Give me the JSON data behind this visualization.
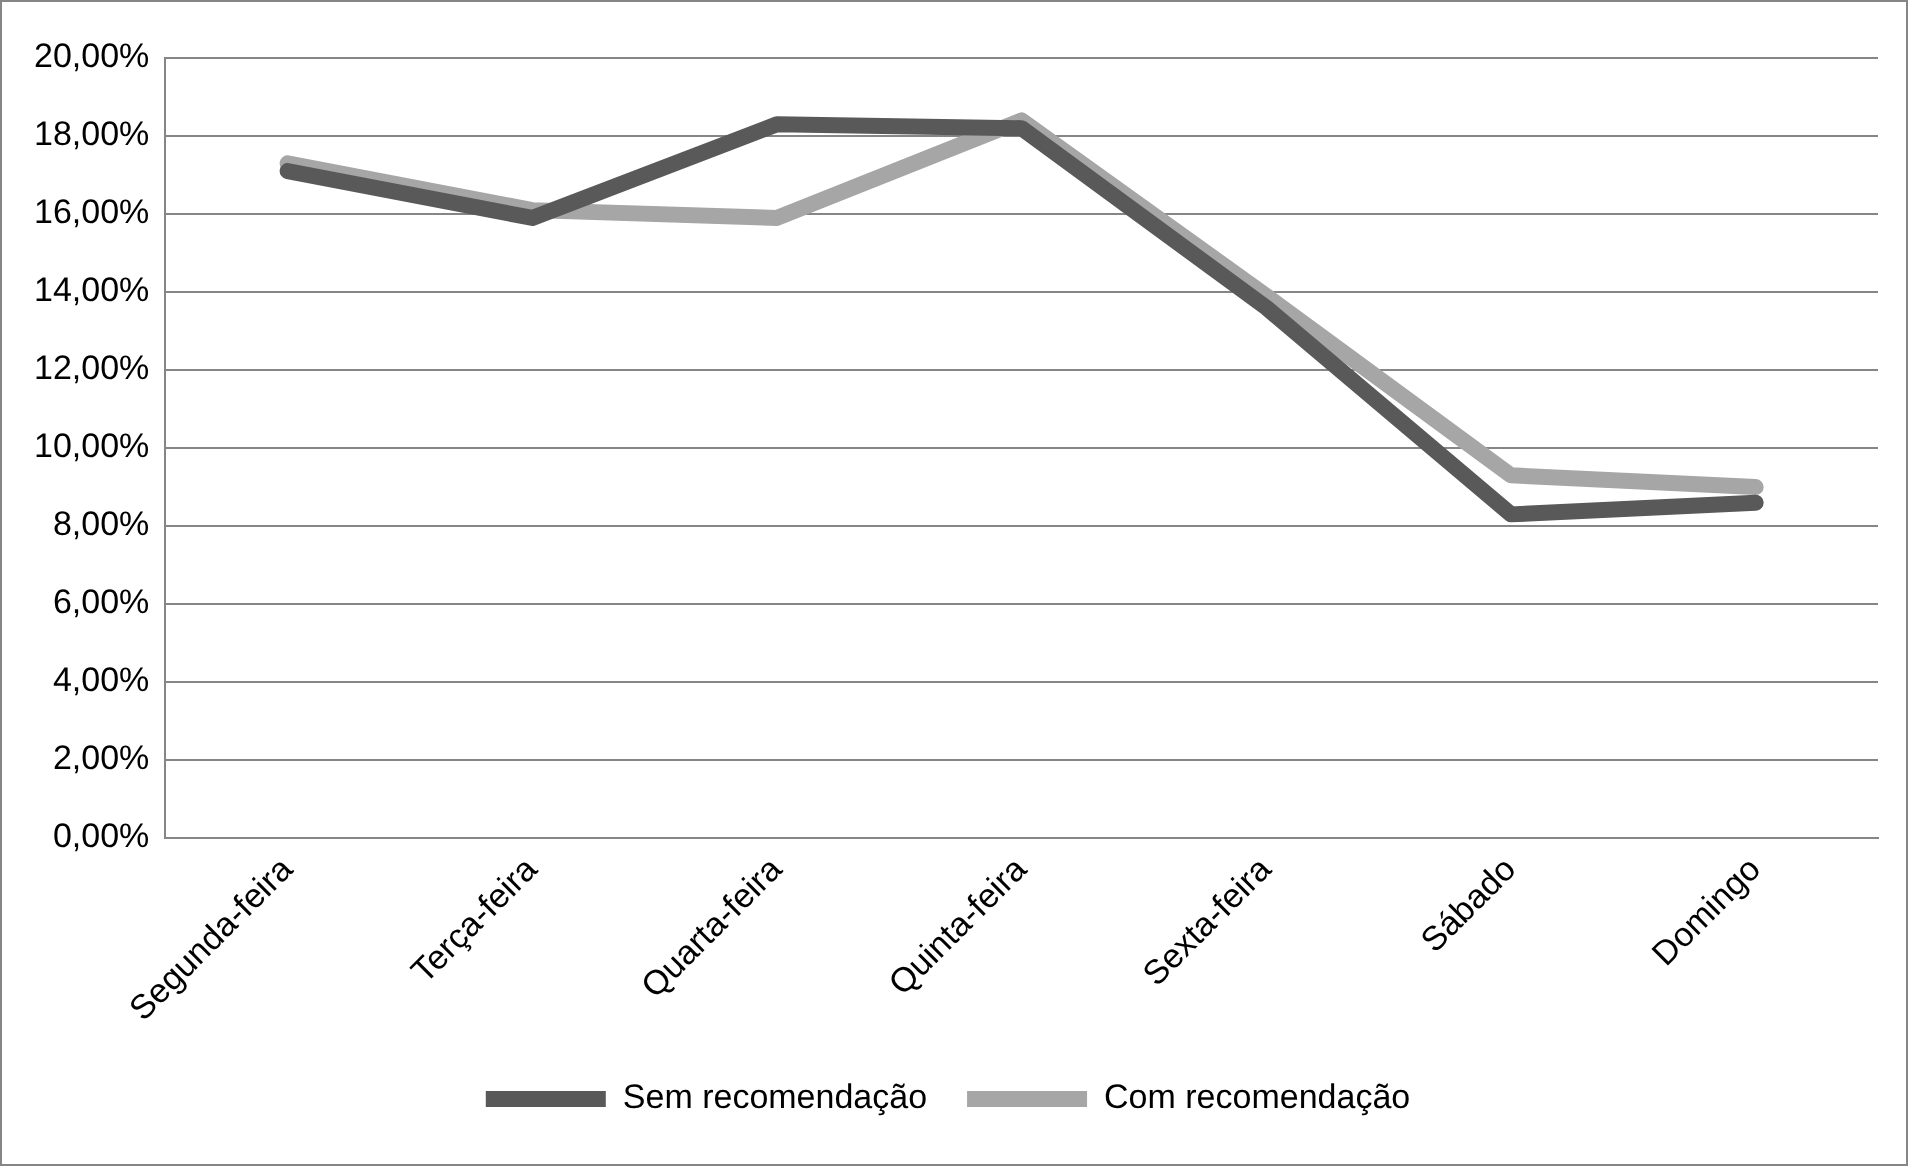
{
  "chart_data": {
    "type": "line",
    "categories": [
      "Segunda-feira",
      "Terça-feira",
      "Quarta-feira",
      "Quinta-feira",
      "Sexta-feira",
      "Sábado",
      "Domingo"
    ],
    "series": [
      {
        "name": "Sem recomendação",
        "color": "#595959",
        "values": [
          17.1,
          15.9,
          18.3,
          18.2,
          13.6,
          8.3,
          8.6
        ]
      },
      {
        "name": "Com recomendação",
        "color": "#a6a6a6",
        "values": [
          17.3,
          16.1,
          15.9,
          18.4,
          13.9,
          9.3,
          9.0
        ]
      }
    ],
    "ylim": [
      0,
      20
    ],
    "yticks": [
      {
        "value": 0,
        "label": "0,00%"
      },
      {
        "value": 2,
        "label": "2,00%"
      },
      {
        "value": 4,
        "label": "4,00%"
      },
      {
        "value": 6,
        "label": "6,00%"
      },
      {
        "value": 8,
        "label": "8,00%"
      },
      {
        "value": 10,
        "label": "10,00%"
      },
      {
        "value": 12,
        "label": "12,00%"
      },
      {
        "value": 14,
        "label": "14,00%"
      },
      {
        "value": 16,
        "label": "16,00%"
      },
      {
        "value": 18,
        "label": "18,00%"
      },
      {
        "value": 20,
        "label": "20,00%"
      }
    ],
    "grid": "y",
    "legend": "bottom",
    "marker": "none",
    "line_style": "solid"
  }
}
